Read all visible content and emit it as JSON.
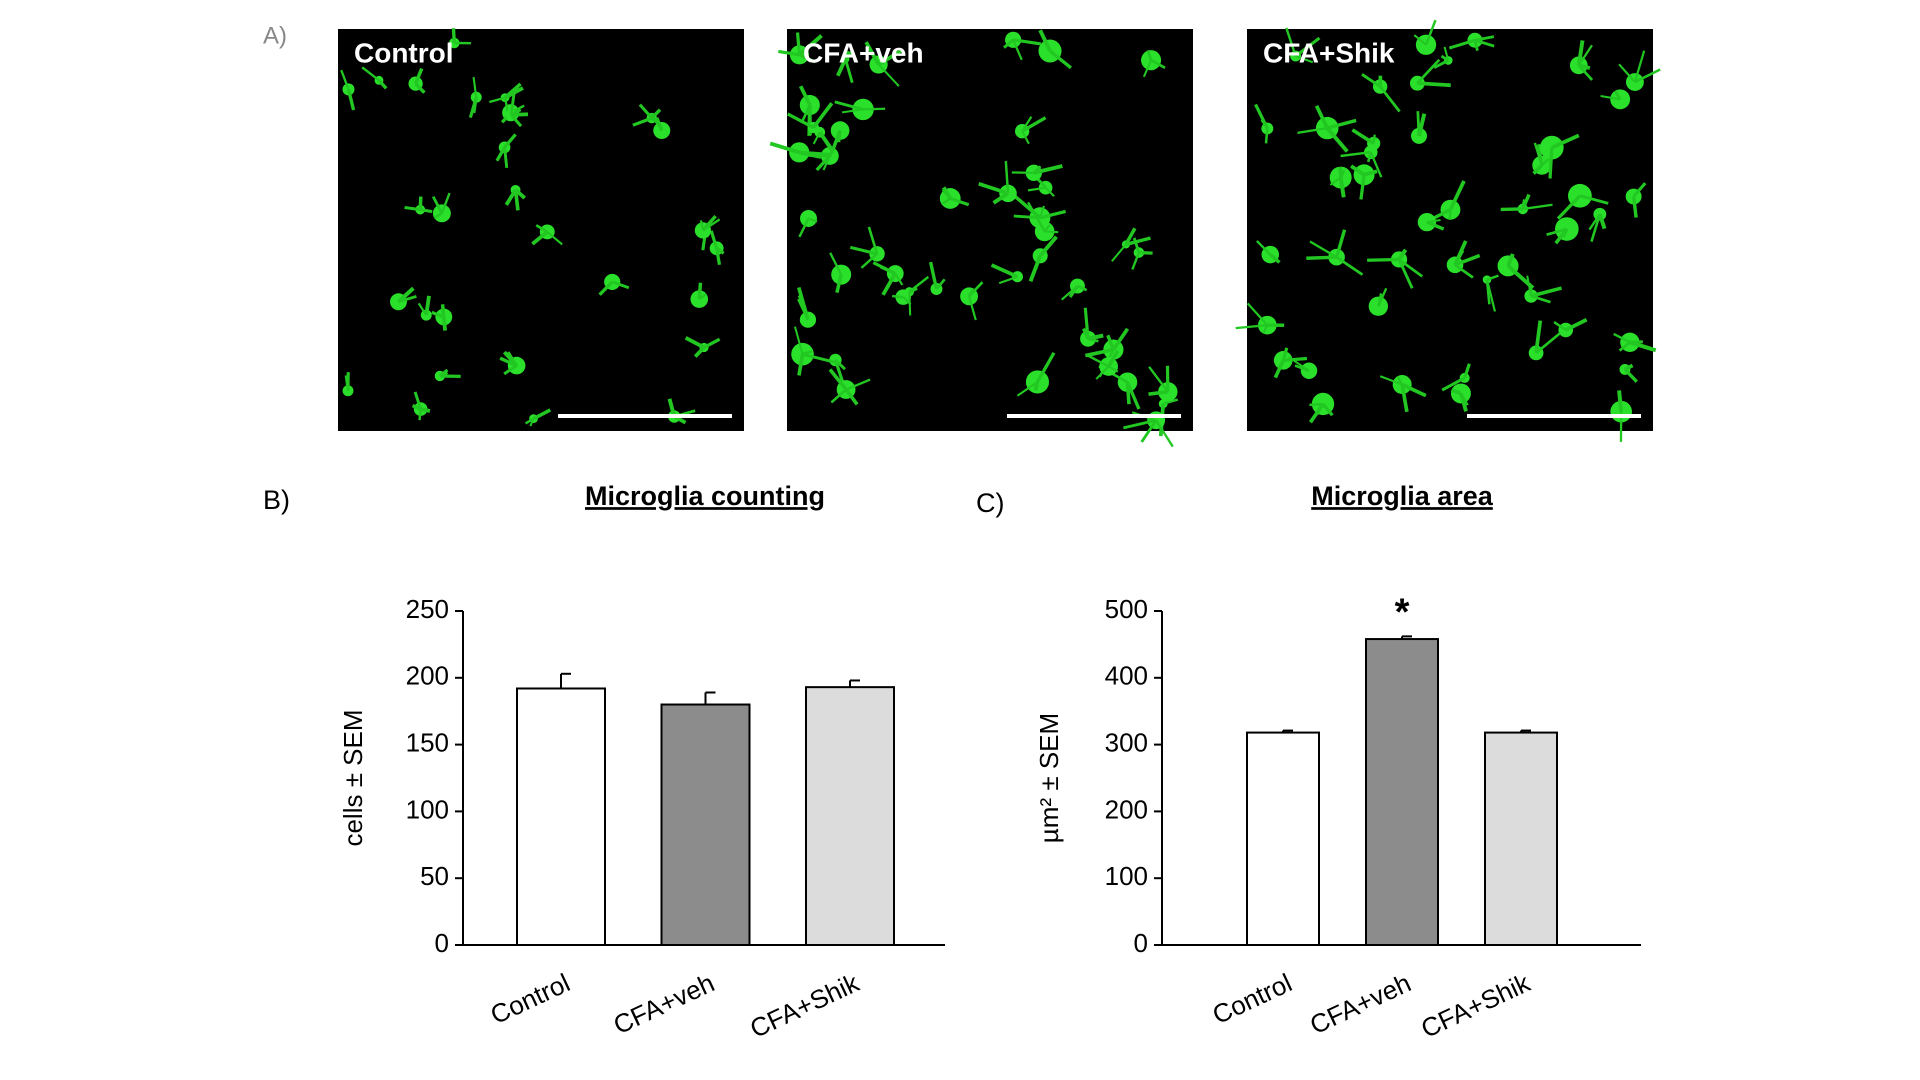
{
  "panel_labels": [
    "A)",
    "B)",
    "C)"
  ],
  "images": [
    {
      "label": "Control"
    },
    {
      "label": "CFA+veh"
    },
    {
      "label": "CFA+Shik"
    }
  ],
  "chart_data": [
    {
      "type": "bar",
      "title": "Microglia counting",
      "ylabel": "cells ± SEM",
      "categories": [
        "Control",
        "CFA+veh",
        "CFA+Shik"
      ],
      "values": [
        192,
        180,
        193
      ],
      "errors": [
        11,
        9,
        5
      ],
      "colors": [
        "#ffffff",
        "#8c8c8c",
        "#dcdcdc"
      ],
      "ylim": [
        0,
        250
      ],
      "yticks": [
        0,
        50,
        100,
        150,
        200,
        250
      ]
    },
    {
      "type": "bar",
      "title": "Microglia area",
      "ylabel": "µm² ± SEM",
      "categories": [
        "Control",
        "CFA+veh",
        "CFA+Shik"
      ],
      "values": [
        318,
        458,
        318
      ],
      "errors": [
        3,
        4,
        3
      ],
      "colors": [
        "#ffffff",
        "#8c8c8c",
        "#dcdcdc"
      ],
      "ylim": [
        0,
        500
      ],
      "yticks": [
        0,
        100,
        200,
        300,
        400,
        500
      ],
      "annotation": "*"
    }
  ]
}
